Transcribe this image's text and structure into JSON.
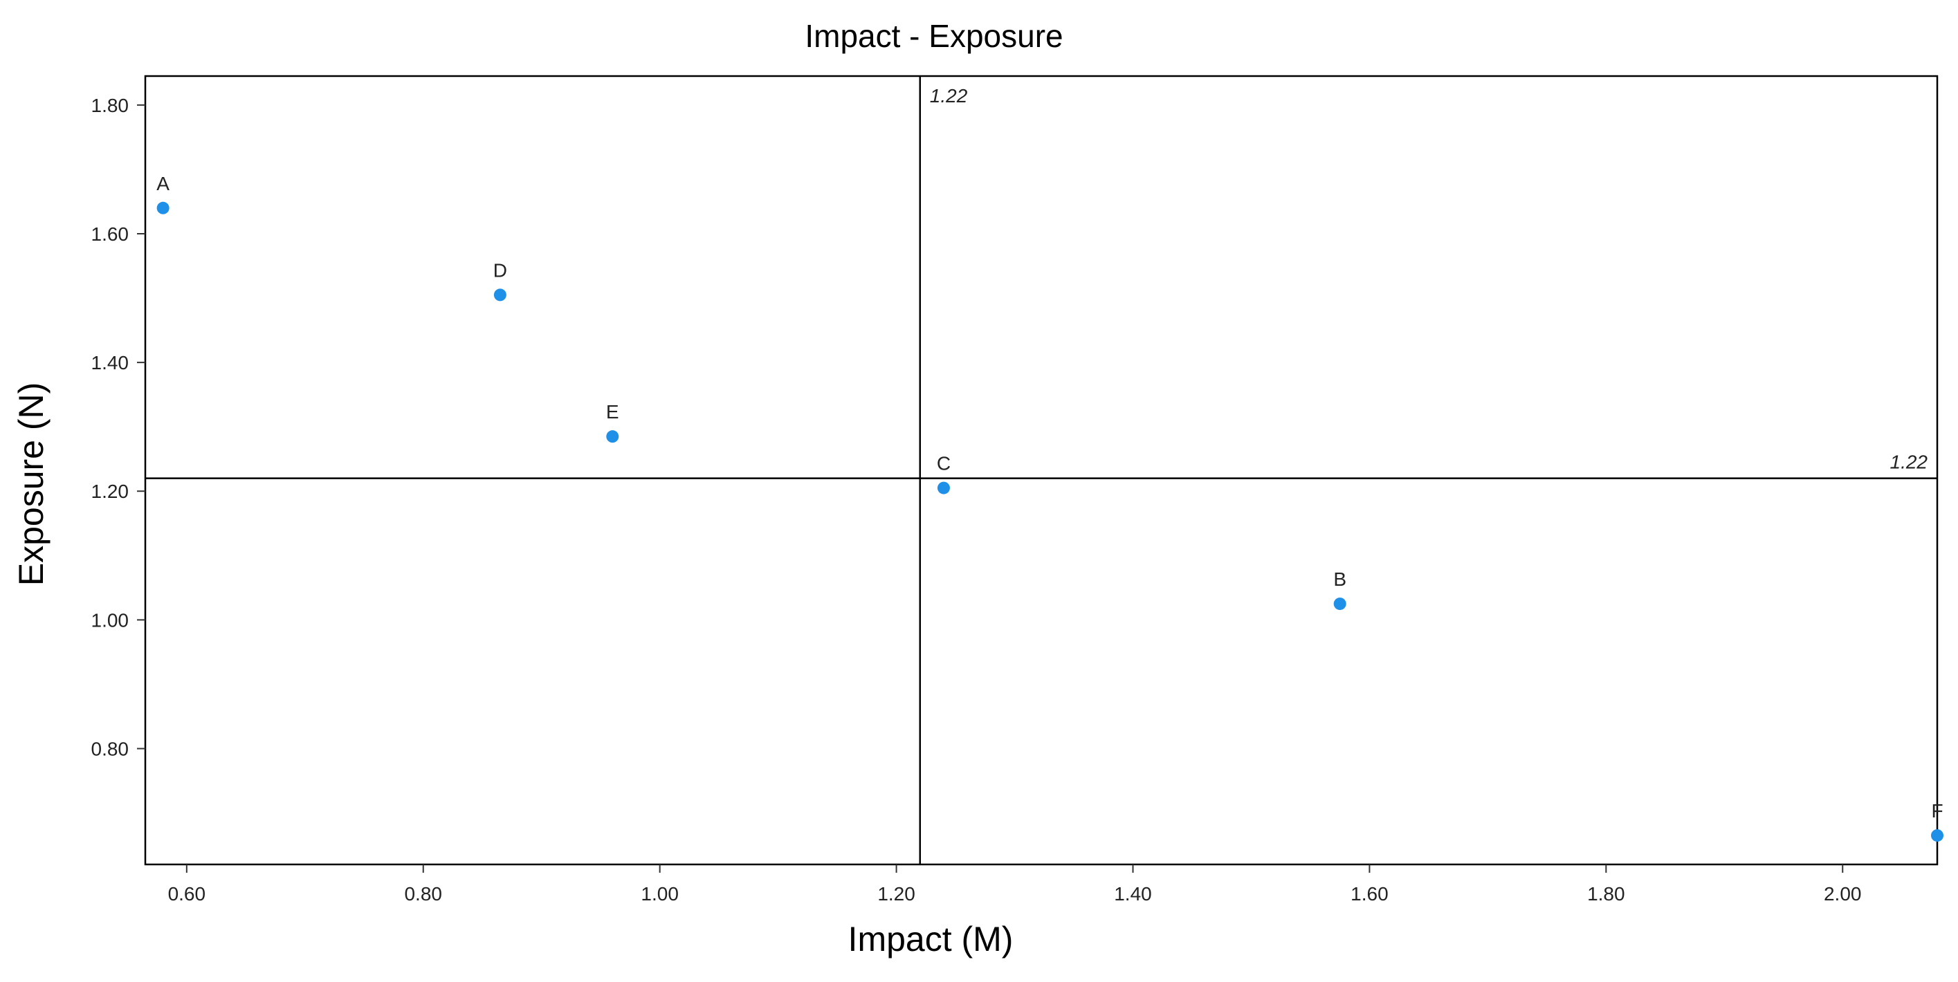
{
  "chart_data": {
    "type": "scatter",
    "title": "Impact - Exposure",
    "xlabel": "Impact (M)",
    "ylabel": "Exposure (N)",
    "xlim": [
      0.565,
      2.08
    ],
    "ylim": [
      0.62,
      1.845
    ],
    "x_ticks": [
      0.6,
      0.8,
      1.0,
      1.2,
      1.4,
      1.6,
      1.8,
      2.0
    ],
    "x_tick_labels": [
      "0.60",
      "0.80",
      "1.00",
      "1.20",
      "1.40",
      "1.60",
      "1.80",
      "2.00"
    ],
    "y_ticks": [
      0.8,
      1.0,
      1.2,
      1.4,
      1.6,
      1.8
    ],
    "y_tick_labels": [
      "0.80",
      "1.00",
      "1.20",
      "1.40",
      "1.60",
      "1.80"
    ],
    "grid": false,
    "points": [
      {
        "label": "A",
        "x": 0.58,
        "y": 1.64
      },
      {
        "label": "D",
        "x": 0.865,
        "y": 1.505
      },
      {
        "label": "E",
        "x": 0.96,
        "y": 1.285
      },
      {
        "label": "C",
        "x": 1.24,
        "y": 1.205
      },
      {
        "label": "B",
        "x": 1.575,
        "y": 1.025
      },
      {
        "label": "F",
        "x": 2.08,
        "y": 0.665
      }
    ],
    "reference_lines": {
      "vertical": {
        "x": 1.22,
        "label": "1.22"
      },
      "horizontal": {
        "y": 1.22,
        "label": "1.22"
      }
    },
    "colors": {
      "point": "#1E90E8",
      "frame": "#000000",
      "lines": "#000000"
    }
  }
}
